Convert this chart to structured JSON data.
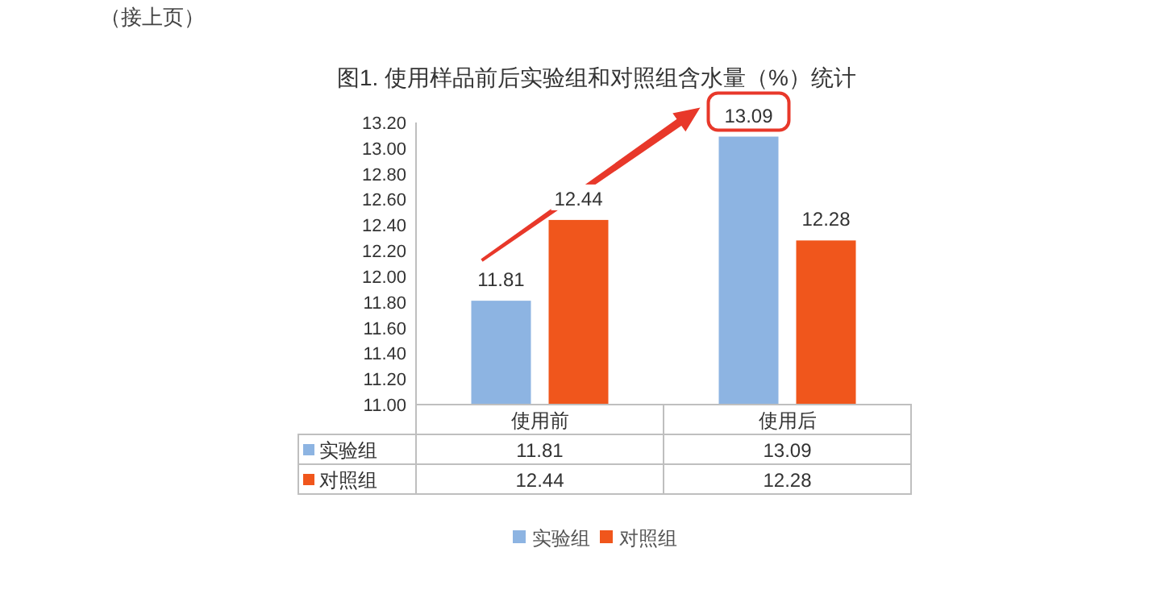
{
  "chart_data": {
    "type": "bar",
    "title": "图1. 使用样品前后实验组和对照组含水量（%）统计",
    "categories": [
      "使用前",
      "使用后"
    ],
    "series": [
      {
        "name": "实验组",
        "color": "#8db4e2",
        "values": [
          11.81,
          13.09
        ],
        "value_labels": [
          "11.81",
          "13.09"
        ]
      },
      {
        "name": "对照组",
        "color": "#f0561c",
        "values": [
          12.44,
          12.28
        ],
        "value_labels": [
          "12.44",
          "12.28"
        ]
      }
    ],
    "ylim": [
      11.0,
      13.2
    ],
    "yticks": [
      {
        "value": 11.0,
        "label": "11.00"
      },
      {
        "value": 11.2,
        "label": "11.20"
      },
      {
        "value": 11.4,
        "label": "11.40"
      },
      {
        "value": 11.6,
        "label": "11.60"
      },
      {
        "value": 11.8,
        "label": "11.80"
      },
      {
        "value": 12.0,
        "label": "12.00"
      },
      {
        "value": 12.2,
        "label": "12.20"
      },
      {
        "value": 12.4,
        "label": "12.40"
      },
      {
        "value": 12.6,
        "label": "12.60"
      },
      {
        "value": 12.8,
        "label": "12.80"
      },
      {
        "value": 13.0,
        "label": "13.00"
      },
      {
        "value": 13.2,
        "label": "13.20"
      }
    ],
    "grid": false,
    "data_labels": true,
    "legend": "bottom",
    "annotations": [
      "（接上页）"
    ]
  }
}
